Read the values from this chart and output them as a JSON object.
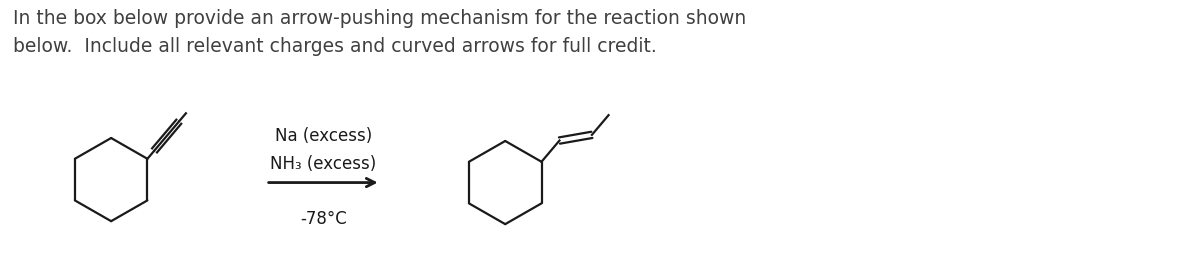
{
  "background_color": "#ffffff",
  "header_line1": "In the box below provide an arrow-pushing mechanism for the reaction shown",
  "header_line2": "below.  Include all relevant charges and curved arrows for full credit.",
  "header_fontsize": 13.5,
  "header_color": "#404040",
  "reagent_line1": "Na (excess)",
  "reagent_line2": "NH₃ (excess)",
  "reagent_line3": "-78°C",
  "reagent_fontsize": 12,
  "arrow_color": "#1a1a1a",
  "molecule_color": "#1a1a1a",
  "molecule_linewidth": 1.6
}
